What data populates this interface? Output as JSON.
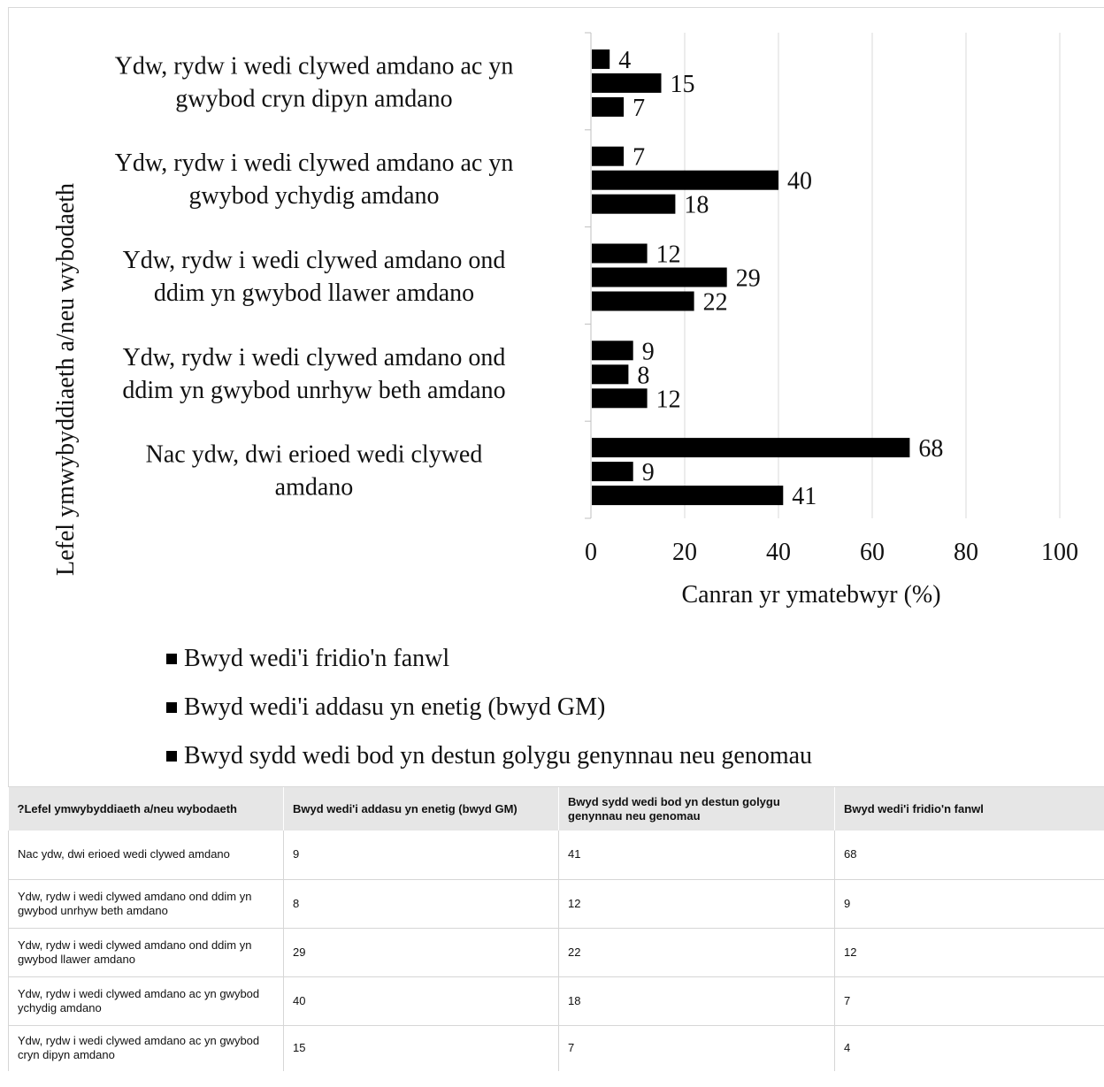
{
  "chart_data": {
    "type": "bar",
    "orientation": "horizontal",
    "categories": [
      "Ydw, rydw i wedi clywed amdano ac yn gwybod cryn dipyn amdano",
      "Ydw, rydw i wedi clywed amdano ac yn gwybod ychydig amdano",
      "Ydw, rydw i wedi clywed amdano ond ddim yn gwybod llawer amdano",
      "Ydw, rydw i wedi clywed amdano ond ddim yn gwybod unrhyw beth amdano",
      "Nac ydw, dwi erioed wedi clywed amdano"
    ],
    "category_lines": [
      [
        "Ydw, rydw i wedi clywed amdano ac yn",
        "gwybod cryn dipyn amdano"
      ],
      [
        "Ydw, rydw i wedi clywed amdano ac yn",
        "gwybod ychydig amdano"
      ],
      [
        "Ydw, rydw i wedi clywed amdano ond",
        "ddim yn gwybod llawer amdano"
      ],
      [
        "Ydw, rydw i wedi clywed amdano ond",
        "ddim yn gwybod unrhyw beth amdano"
      ],
      [
        "Nac ydw, dwi erioed wedi clywed",
        "amdano"
      ]
    ],
    "series": [
      {
        "name": "Bwyd wedi'i fridio'n fanwl",
        "values": [
          4,
          7,
          12,
          9,
          68
        ],
        "color": "#000000"
      },
      {
        "name": "Bwyd wedi'i addasu yn enetig (bwyd GM)",
        "values": [
          15,
          40,
          29,
          8,
          9
        ],
        "color": "#000000"
      },
      {
        "name": "Bwyd sydd wedi bod yn destun golygu genynnau neu genomau",
        "values": [
          7,
          18,
          22,
          12,
          41
        ],
        "color": "#000000"
      }
    ],
    "xlabel": "Canran yr ymatebwyr (%)",
    "ylabel": "Lefel ymwybyddiaeth a/neu wybodaeth",
    "xlim": [
      0,
      100
    ],
    "xticks": [
      "0",
      "20",
      "40",
      "60",
      "80",
      "100"
    ],
    "grid": true,
    "legend_position": "bottom",
    "legend_marker": "■"
  },
  "table": {
    "headers": [
      "?Lefel ymwybyddiaeth a/neu wybodaeth",
      "Bwyd wedi'i addasu yn enetig (bwyd GM)",
      "Bwyd sydd wedi bod yn destun golygu genynnau neu genomau",
      "Bwyd wedi'i fridio'n fanwl"
    ],
    "rows": [
      [
        "Nac ydw, dwi erioed wedi clywed amdano",
        "9",
        "41",
        "68"
      ],
      [
        "Ydw, rydw i wedi clywed amdano ond ddim yn gwybod unrhyw beth amdano",
        "8",
        "12",
        "9"
      ],
      [
        "Ydw, rydw i wedi clywed amdano ond ddim yn gwybod llawer amdano",
        "29",
        "22",
        "12"
      ],
      [
        "Ydw, rydw i wedi clywed amdano ac yn gwybod ychydig amdano",
        "40",
        "18",
        "7"
      ],
      [
        "Ydw, rydw i wedi clywed amdano ac yn gwybod cryn dipyn amdano",
        "15",
        "7",
        "4"
      ]
    ]
  }
}
